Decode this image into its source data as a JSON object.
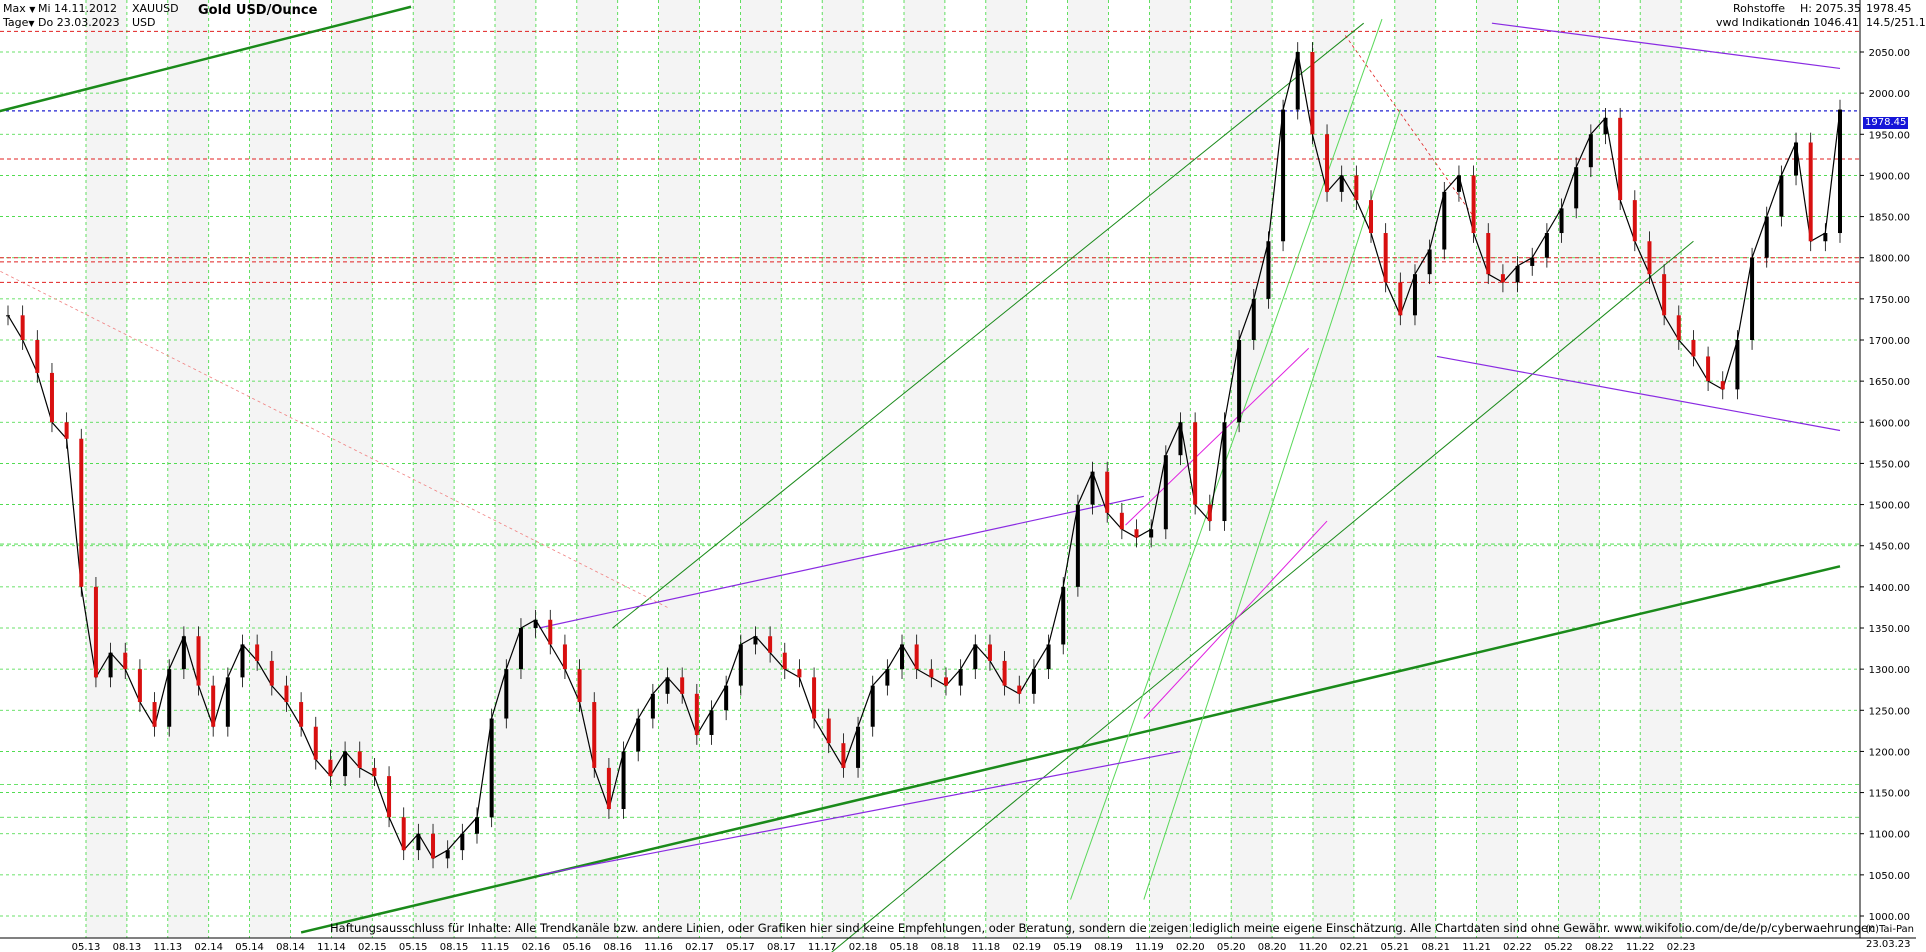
{
  "header": {
    "range_label": "Max",
    "period_label": "Tage",
    "start_date": "Mi 14.11.2012",
    "end_date": "Do 23.03.2023",
    "symbol": "XAUUSD",
    "currency": "USD",
    "title": "Gold USD/Ounce",
    "category": "Rohstoffe",
    "source": "vwd Indikationen",
    "high_label": "H: 2075.35",
    "low_label": "L: 1046.41",
    "last_price": "1978.45",
    "change_label": "14.5/251.1"
  },
  "current_price_tag": "1978.45",
  "disclaimer": "Haftungsausschluss für Inhalte: Alle Trendkanäle bzw. andere Linien, oder Grafiken hier sind keine Empfehlungen, oder Beratung, sondern die zeigen lediglich meine eigene Einschätzung. Alle Chartdaten sind ohne Gewähr.  www.wikifolio.com/de/de/p/cyberwaehrungen",
  "copyright": "(c)Tai-Pan",
  "end_axis_label": "23.03.23",
  "colors": {
    "grid": "#3ad83a",
    "candle_up": "#000000",
    "candle_down": "#d81010",
    "support_red": "#e02020",
    "current_price": "#2020d0",
    "trend_green": "#1a8a1a",
    "trend_purple": "#8a2be2",
    "trend_magenta": "#e020e0"
  },
  "chart_data": {
    "type": "line",
    "title": "Gold USD/Ounce",
    "xlabel": "",
    "ylabel": "",
    "ylim": [
      1000,
      2075
    ],
    "y_ticks": [
      1000,
      1050,
      1100,
      1150,
      1200,
      1250,
      1300,
      1350,
      1400,
      1450,
      1500,
      1550,
      1600,
      1650,
      1700,
      1750,
      1800,
      1850,
      1900,
      1950,
      2000,
      2050
    ],
    "x_tick_labels": [
      "05.13",
      "08.13",
      "11.13",
      "02.14",
      "05.14",
      "08.14",
      "11.14",
      "02.15",
      "05.15",
      "08.15",
      "11.15",
      "02.16",
      "05.16",
      "08.16",
      "11.16",
      "02.17",
      "05.17",
      "08.17",
      "11.17",
      "02.18",
      "05.18",
      "08.18",
      "11.18",
      "02.19",
      "05.19",
      "08.19",
      "11.19",
      "02.20",
      "05.20",
      "08.20",
      "11.20",
      "02.21",
      "05.21",
      "08.21",
      "11.21",
      "02.22",
      "05.22",
      "08.22",
      "11.22",
      "02.23"
    ],
    "series": [
      {
        "values": [
          1730,
          1700,
          1660,
          1600,
          1580,
          1400,
          1290,
          1320,
          1300,
          1260,
          1230,
          1300,
          1340,
          1280,
          1230,
          1290,
          1330,
          1310,
          1280,
          1260,
          1230,
          1190,
          1170,
          1200,
          1180,
          1170,
          1120,
          1080,
          1100,
          1070,
          1080,
          1100,
          1120,
          1240,
          1300,
          1350,
          1360,
          1330,
          1300,
          1260,
          1180,
          1130,
          1200,
          1240,
          1270,
          1290,
          1270,
          1220,
          1250,
          1280,
          1330,
          1340,
          1320,
          1300,
          1290,
          1240,
          1210,
          1180,
          1230,
          1280,
          1300,
          1330,
          1300,
          1290,
          1280,
          1300,
          1330,
          1310,
          1280,
          1270,
          1300,
          1330,
          1400,
          1500,
          1540,
          1490,
          1470,
          1460,
          1470,
          1560,
          1600,
          1500,
          1480,
          1600,
          1700,
          1750,
          1820,
          1980,
          2050,
          1950,
          1880,
          1900,
          1870,
          1830,
          1770,
          1730,
          1780,
          1810,
          1880,
          1900,
          1830,
          1780,
          1770,
          1790,
          1800,
          1830,
          1860,
          1910,
          1950,
          1970,
          1870,
          1820,
          1780,
          1730,
          1700,
          1680,
          1650,
          1640,
          1700,
          1800,
          1850,
          1900,
          1940,
          1820,
          1830,
          1980
        ],
        "x_start": "05.2013",
        "x_end": "03.2023"
      }
    ],
    "horizontal_levels": [
      2075,
      1978.45,
      1920,
      1800,
      1795,
      1770,
      1160,
      1120,
      1452
    ],
    "annotations": []
  }
}
